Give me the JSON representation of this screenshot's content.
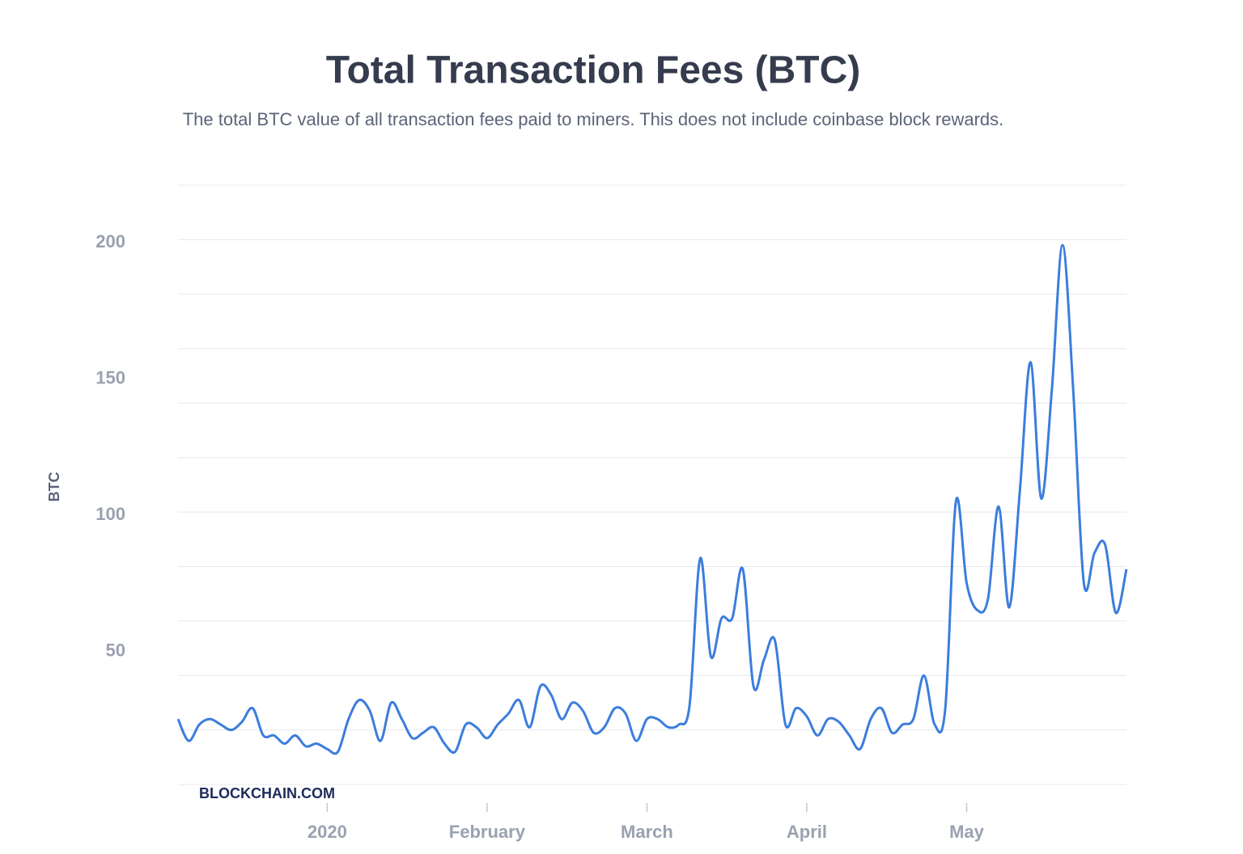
{
  "chart_data": {
    "type": "line",
    "title": "Total Transaction Fees (BTC)",
    "subtitle": "The total BTC value of all transaction fees paid to miners. This does not include coinbase block rewards.",
    "y_label": "BTC",
    "watermark": "BLOCKCHAIN.COM",
    "categories": [
      null,
      null,
      null,
      null,
      null,
      null,
      null,
      null,
      null,
      null,
      null,
      null,
      null,
      null,
      "2020",
      null,
      null,
      null,
      null,
      null,
      null,
      null,
      null,
      null,
      null,
      null,
      null,
      null,
      null,
      "February",
      null,
      null,
      null,
      null,
      null,
      null,
      null,
      null,
      null,
      null,
      null,
      null,
      null,
      null,
      "March",
      null,
      null,
      null,
      null,
      null,
      null,
      null,
      null,
      null,
      null,
      null,
      null,
      null,
      null,
      "April",
      null,
      null,
      null,
      null,
      null,
      null,
      null,
      null,
      null,
      null,
      null,
      null,
      null,
      null,
      "May",
      null,
      null,
      null,
      null,
      null,
      null,
      null,
      null,
      null,
      null,
      null,
      null,
      null,
      null,
      null
    ],
    "series": [
      {
        "name": "BTC",
        "color": "#3b7ddd",
        "values": [
          24,
          16,
          22,
          24,
          22,
          20,
          23,
          28,
          18,
          18,
          15,
          18,
          14,
          15,
          13,
          12,
          24,
          31,
          27,
          16,
          30,
          24,
          17,
          19,
          21,
          15,
          12,
          22,
          21,
          17,
          22,
          26,
          31,
          21,
          36,
          33,
          24,
          30,
          27,
          19,
          21,
          28,
          26,
          16,
          24,
          24,
          21,
          22,
          29,
          83,
          47,
          61,
          61,
          79,
          36,
          46,
          53,
          22,
          28,
          25,
          18,
          24,
          23,
          18,
          13,
          24,
          28,
          19,
          22,
          24,
          40,
          22,
          28,
          104,
          74,
          64,
          68,
          102,
          65,
          108,
          155,
          105,
          145,
          198,
          145,
          74,
          85,
          88,
          63,
          79
        ]
      }
    ],
    "ylim": [
      0,
      220
    ],
    "yticks": [
      50,
      100,
      150,
      200
    ],
    "ygrid": [
      0,
      20,
      40,
      60,
      80,
      100,
      120,
      140,
      160,
      180,
      200,
      220
    ],
    "grid": true
  }
}
